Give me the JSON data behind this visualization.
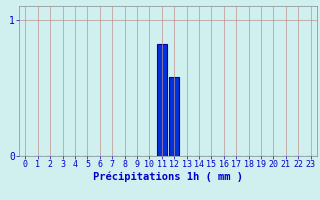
{
  "hours": [
    0,
    1,
    2,
    3,
    4,
    5,
    6,
    7,
    8,
    9,
    10,
    11,
    12,
    13,
    14,
    15,
    16,
    17,
    18,
    19,
    20,
    21,
    22,
    23
  ],
  "values": [
    0,
    0,
    0,
    0,
    0,
    0,
    0,
    0,
    0,
    0,
    0,
    0.82,
    0.58,
    0,
    0,
    0,
    0,
    0,
    0,
    0,
    0,
    0,
    0,
    0
  ],
  "bar_color": "#0033dd",
  "bar_edge_color": "#0000aa",
  "background_color": "#d0f0f0",
  "grid_color": "#c09090",
  "axis_color": "#0000cc",
  "xlabel": "Précipitations 1h ( mm )",
  "xlabel_color": "#0000cc",
  "xlabel_fontsize": 7.5,
  "ylim": [
    0,
    1.1
  ],
  "yticks": [
    0,
    1
  ],
  "xlim": [
    -0.5,
    23.5
  ],
  "tick_fontsize": 6.0
}
